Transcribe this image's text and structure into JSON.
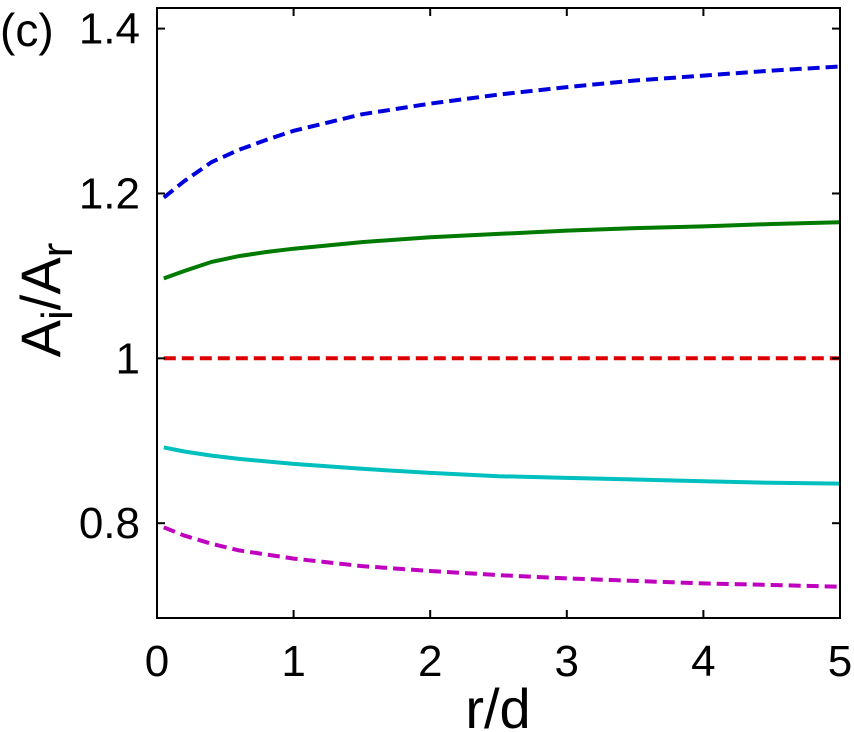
{
  "chart_data": {
    "type": "line",
    "panel_label": "(c)",
    "xlabel": "r/d",
    "ylabel": {
      "base": "A",
      "sub1": "i",
      "sep": "/A",
      "sub2": "r"
    },
    "xlim": [
      0,
      5
    ],
    "ylim": [
      0.685,
      1.425
    ],
    "xticks": [
      0,
      1,
      2,
      3,
      4,
      5
    ],
    "yticks": [
      0.8,
      1,
      1.2,
      1.4
    ],
    "ytick_labels": [
      "0.8",
      "1",
      "1.2",
      "1.4"
    ],
    "grid": false,
    "series": [
      {
        "color": "#0000dd",
        "style": "dashed",
        "x": [
          0.05,
          0.2,
          0.4,
          0.6,
          0.8,
          1.0,
          1.5,
          2.0,
          2.5,
          3.0,
          3.5,
          4.0,
          4.5,
          5.0
        ],
        "y": [
          1.195,
          1.215,
          1.238,
          1.253,
          1.265,
          1.276,
          1.296,
          1.309,
          1.32,
          1.329,
          1.337,
          1.343,
          1.349,
          1.354
        ]
      },
      {
        "color": "#007a00",
        "style": "solid",
        "x": [
          0.05,
          0.2,
          0.4,
          0.6,
          0.8,
          1.0,
          1.5,
          2.0,
          2.5,
          3.0,
          3.5,
          4.0,
          4.5,
          5.0
        ],
        "y": [
          1.097,
          1.106,
          1.117,
          1.124,
          1.129,
          1.133,
          1.141,
          1.147,
          1.151,
          1.155,
          1.158,
          1.16,
          1.163,
          1.165
        ]
      },
      {
        "color": "#dd0000",
        "style": "dashed",
        "x": [
          0.05,
          5.0
        ],
        "y": [
          1.0,
          1.0
        ]
      },
      {
        "color": "#00bfbf",
        "style": "solid",
        "x": [
          0.05,
          0.2,
          0.4,
          0.6,
          0.8,
          1.0,
          1.5,
          2.0,
          2.5,
          3.0,
          3.5,
          4.0,
          4.5,
          5.0
        ],
        "y": [
          0.892,
          0.887,
          0.882,
          0.878,
          0.875,
          0.872,
          0.866,
          0.861,
          0.857,
          0.855,
          0.853,
          0.851,
          0.849,
          0.848
        ]
      },
      {
        "color": "#bf00bf",
        "style": "dashed",
        "x": [
          0.05,
          0.2,
          0.4,
          0.6,
          0.8,
          1.0,
          1.5,
          2.0,
          2.5,
          3.0,
          3.5,
          4.0,
          4.5,
          5.0
        ],
        "y": [
          0.795,
          0.785,
          0.775,
          0.767,
          0.762,
          0.757,
          0.748,
          0.742,
          0.737,
          0.733,
          0.73,
          0.727,
          0.725,
          0.723
        ]
      }
    ]
  }
}
